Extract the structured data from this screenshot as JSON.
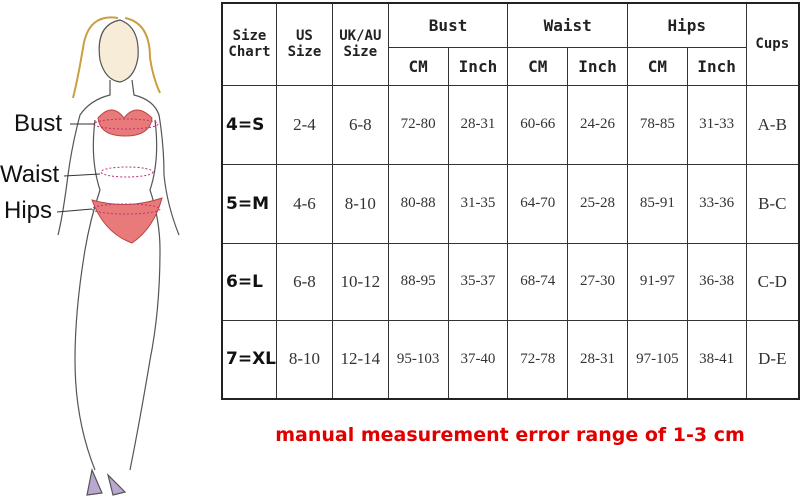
{
  "figure_labels": {
    "bust": "Bust",
    "waist": "Waist",
    "hips": "Hips"
  },
  "table": {
    "headers": {
      "size_chart": "Size Chart",
      "us_size": "US Size",
      "uk_au_size": "UK/AU Size",
      "bust": "Bust",
      "waist": "Waist",
      "hips": "Hips",
      "cups": "Cups",
      "cm": "CM",
      "inch": "Inch"
    },
    "rows": [
      {
        "size": "4=S",
        "us": "2-4",
        "uk": "6-8",
        "bust_cm": "72-80",
        "bust_in": "28-31",
        "waist_cm": "60-66",
        "waist_in": "24-26",
        "hips_cm": "78-85",
        "hips_in": "31-33",
        "cups": "A-B"
      },
      {
        "size": "5=M",
        "us": "4-6",
        "uk": "8-10",
        "bust_cm": "80-88",
        "bust_in": "31-35",
        "waist_cm": "64-70",
        "waist_in": "25-28",
        "hips_cm": "85-91",
        "hips_in": "33-36",
        "cups": "B-C"
      },
      {
        "size": "6=L",
        "us": "6-8",
        "uk": "10-12",
        "bust_cm": "88-95",
        "bust_in": "35-37",
        "waist_cm": "68-74",
        "waist_in": "27-30",
        "hips_cm": "91-97",
        "hips_in": "36-38",
        "cups": "C-D"
      },
      {
        "size": "7=XL",
        "us": "8-10",
        "uk": "12-14",
        "bust_cm": "95-103",
        "bust_in": "37-40",
        "waist_cm": "72-78",
        "waist_in": "28-31",
        "hips_cm": "97-105",
        "hips_in": "38-41",
        "cups": "D-E"
      }
    ]
  },
  "note": "manual measurement error range of 1-3 cm",
  "colors": {
    "note": "#e00000",
    "lingerie": "#e87a7a",
    "measure_line": "#c0307a"
  }
}
